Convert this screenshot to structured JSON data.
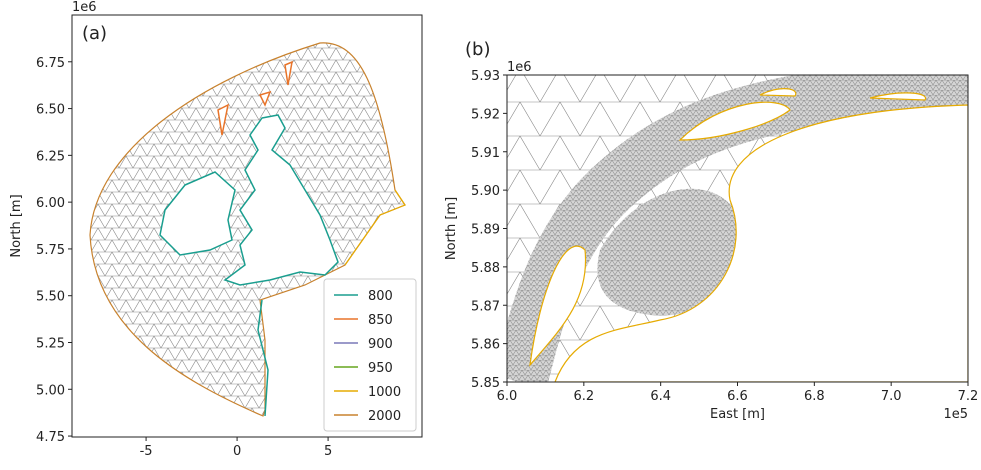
{
  "chart_data": [
    {
      "type": "mesh",
      "panel_label": "(a)",
      "ylabel": "North [m]",
      "y_offset": "1e6",
      "xlim": [
        -9.07,
        10.16
      ],
      "xticks": [
        -5,
        0,
        5
      ],
      "ylim": [
        4.745,
        7.0
      ],
      "yticks": [
        {
          "value": 4.75,
          "label": "4.75"
        },
        {
          "value": 5.0,
          "label": "5.00"
        },
        5.25,
        {
          "value": 5.5,
          "label": "5.50"
        },
        5.75,
        {
          "value": 6.0,
          "label": "6.00"
        },
        6.25,
        {
          "value": 6.5,
          "label": "6.50"
        },
        6.75
      ],
      "legend": "lower right",
      "series": [
        {
          "name": "800",
          "color": "#1a9e8f"
        },
        {
          "name": "850",
          "color": "#e8742a"
        },
        {
          "name": "900",
          "color": "#7a78b8"
        },
        {
          "name": "950",
          "color": "#66a61e"
        },
        {
          "name": "1000",
          "color": "#e6ab02"
        },
        {
          "name": "2000",
          "color": "#c8822e"
        }
      ]
    },
    {
      "type": "mesh",
      "panel_label": "(b)",
      "xlabel": "East [m]",
      "ylabel": "North [m]",
      "x_offset": "1e5",
      "y_offset": "1e6",
      "xlim": [
        6.0,
        7.2
      ],
      "xticks": [
        {
          "value": 6.0,
          "label": "6.0"
        },
        6.2,
        6.4,
        6.6,
        6.8,
        {
          "value": 7.0,
          "label": "7.0"
        },
        7.2
      ],
      "ylim": [
        5.85,
        5.93
      ],
      "yticks": [
        5.85,
        5.86,
        5.87,
        5.88,
        5.89,
        {
          "value": 5.9,
          "label": "5.90"
        },
        5.91,
        5.92,
        5.93
      ]
    }
  ]
}
